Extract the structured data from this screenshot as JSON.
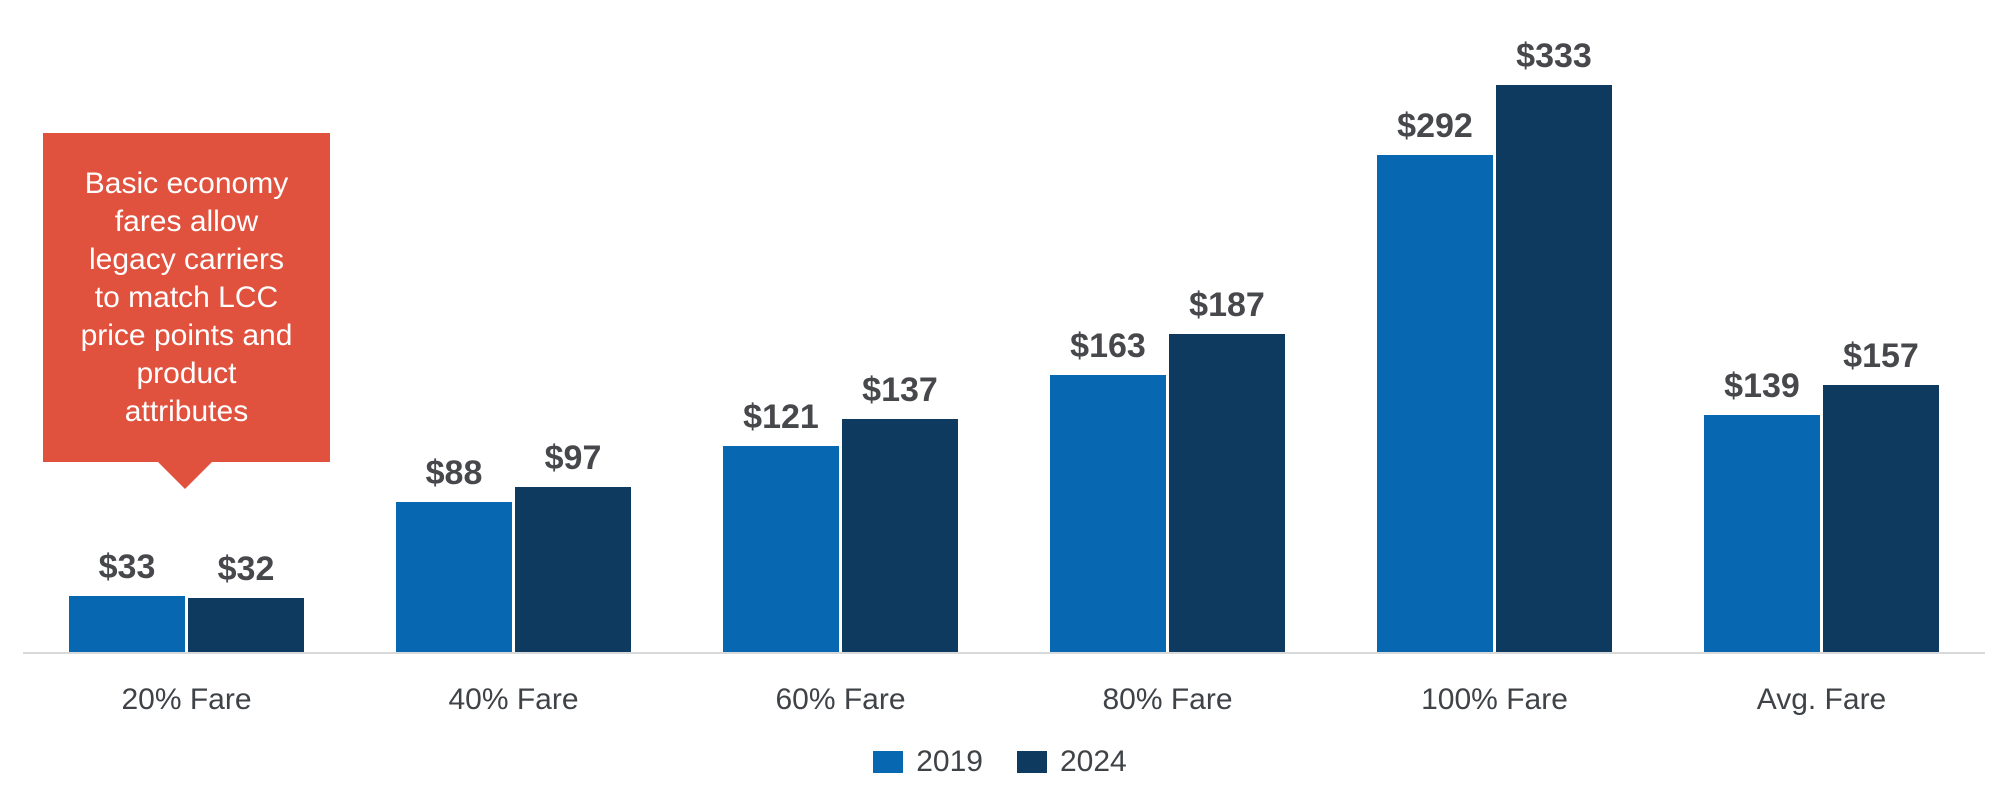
{
  "colors": {
    "series_2019": "#0768B1",
    "series_2024": "#0E3A5F",
    "callout_bg": "#E0523E",
    "callout_text": "#FFFFFF",
    "axis_line": "#D8D9DB",
    "value_label": "#47484B",
    "category_label": "#3F4347"
  },
  "callout": {
    "text": "Basic economy\nfares allow\nlegacy carriers\nto match LCC\nprice points and\nproduct\nattributes"
  },
  "chart_data": {
    "type": "bar",
    "title": "",
    "xlabel": "",
    "ylabel": "",
    "categories": [
      "20% Fare",
      "40% Fare",
      "60% Fare",
      "80% Fare",
      "100% Fare",
      "Avg. Fare"
    ],
    "series": [
      {
        "name": "2019",
        "color": "#0768B1",
        "values": [
          33,
          88,
          121,
          163,
          292,
          139
        ]
      },
      {
        "name": "2024",
        "color": "#0E3A5F",
        "values": [
          32,
          97,
          137,
          187,
          333,
          157
        ]
      }
    ],
    "value_prefix": "$",
    "ylim": [
      0,
      383
    ],
    "grid": false,
    "legend_position": "bottom"
  }
}
